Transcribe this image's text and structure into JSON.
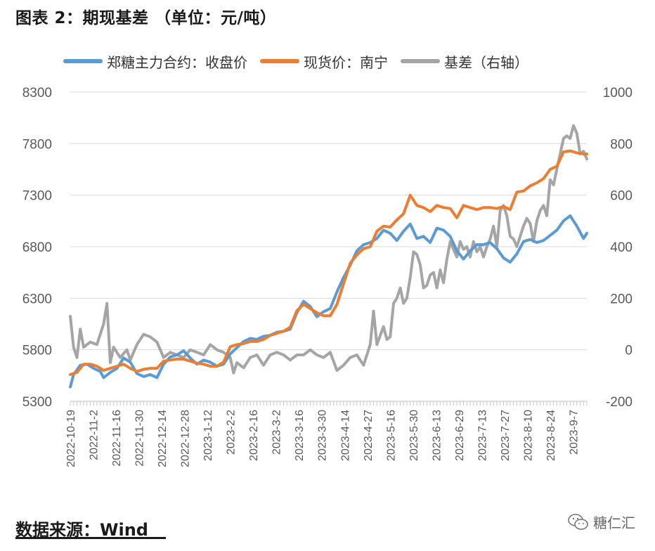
{
  "title": "图表 2：期现基差 （单位：元/吨）",
  "source": "数据来源：Wind",
  "watermark": "糖仁汇",
  "colors": {
    "futures": "#5b9bd5",
    "spot": "#ed7d31",
    "basis": "#a5a5a5",
    "grid": "#d9d9d9",
    "text": "#595959"
  },
  "chart_data": {
    "type": "line",
    "legend": [
      "郑糖主力合约：收盘价",
      "现货价：南宁",
      "基差（右轴）"
    ],
    "x_tick_labels": [
      "2022-10-19",
      "2022-11-2",
      "2022-11-16",
      "2022-11-30",
      "2022-12-14",
      "2022-12-28",
      "2023-1-12",
      "2023-2-2",
      "2023-2-16",
      "2023-3-2",
      "2023-3-16",
      "2023-3-30",
      "2023-4-14",
      "2023-4-27",
      "2023-5-16",
      "2023-5-30",
      "2023-6-13",
      "2023-6-29",
      "2023-7-13",
      "2023-7-27",
      "2023-8-10",
      "2023-8-24",
      "2023-9-7"
    ],
    "y_left": {
      "min": 5300,
      "max": 8300,
      "ticks": [
        5300,
        5800,
        6300,
        6800,
        7300,
        7800,
        8300
      ]
    },
    "y_right": {
      "min": -200,
      "max": 1000,
      "ticks": [
        -200,
        0,
        200,
        400,
        600,
        800,
        1000
      ]
    },
    "series": [
      {
        "name": "郑糖主力合约：收盘价",
        "axis": "left",
        "points": [
          [
            0,
            5440
          ],
          [
            1,
            5560
          ],
          [
            3,
            5650
          ],
          [
            5,
            5660
          ],
          [
            7,
            5620
          ],
          [
            9,
            5590
          ],
          [
            10,
            5530
          ],
          [
            12,
            5580
          ],
          [
            14,
            5620
          ],
          [
            16,
            5720
          ],
          [
            18,
            5680
          ],
          [
            20,
            5570
          ],
          [
            22,
            5540
          ],
          [
            24,
            5560
          ],
          [
            26,
            5530
          ],
          [
            28,
            5660
          ],
          [
            30,
            5730
          ],
          [
            32,
            5750
          ],
          [
            34,
            5790
          ],
          [
            36,
            5720
          ],
          [
            38,
            5660
          ],
          [
            40,
            5700
          ],
          [
            42,
            5680
          ],
          [
            44,
            5640
          ],
          [
            46,
            5660
          ],
          [
            48,
            5760
          ],
          [
            50,
            5820
          ],
          [
            52,
            5880
          ],
          [
            54,
            5910
          ],
          [
            56,
            5900
          ],
          [
            58,
            5930
          ],
          [
            60,
            5940
          ],
          [
            62,
            5970
          ],
          [
            64,
            5980
          ],
          [
            66,
            6000
          ],
          [
            68,
            6160
          ],
          [
            70,
            6270
          ],
          [
            72,
            6220
          ],
          [
            74,
            6120
          ],
          [
            76,
            6170
          ],
          [
            78,
            6200
          ],
          [
            80,
            6360
          ],
          [
            82,
            6500
          ],
          [
            84,
            6620
          ],
          [
            86,
            6760
          ],
          [
            88,
            6820
          ],
          [
            90,
            6840
          ],
          [
            92,
            6880
          ],
          [
            94,
            6960
          ],
          [
            96,
            6930
          ],
          [
            98,
            6860
          ],
          [
            100,
            6950
          ],
          [
            102,
            7020
          ],
          [
            104,
            6880
          ],
          [
            106,
            6900
          ],
          [
            108,
            6840
          ],
          [
            110,
            6980
          ],
          [
            112,
            6960
          ],
          [
            114,
            6900
          ],
          [
            116,
            6760
          ],
          [
            118,
            6680
          ],
          [
            120,
            6760
          ],
          [
            122,
            6820
          ],
          [
            124,
            6820
          ],
          [
            126,
            6840
          ],
          [
            128,
            6780
          ],
          [
            130,
            6690
          ],
          [
            132,
            6650
          ],
          [
            134,
            6730
          ],
          [
            136,
            6850
          ],
          [
            138,
            6870
          ],
          [
            140,
            6840
          ],
          [
            142,
            6860
          ],
          [
            144,
            6910
          ],
          [
            146,
            6960
          ],
          [
            148,
            7050
          ],
          [
            150,
            7100
          ],
          [
            152,
            7000
          ],
          [
            154,
            6880
          ],
          [
            155,
            6930
          ]
        ]
      },
      {
        "name": "现货价：南宁",
        "axis": "left",
        "points": [
          [
            0,
            5560
          ],
          [
            2,
            5580
          ],
          [
            4,
            5660
          ],
          [
            6,
            5660
          ],
          [
            8,
            5640
          ],
          [
            10,
            5600
          ],
          [
            12,
            5620
          ],
          [
            14,
            5640
          ],
          [
            16,
            5660
          ],
          [
            18,
            5620
          ],
          [
            20,
            5590
          ],
          [
            22,
            5610
          ],
          [
            24,
            5620
          ],
          [
            26,
            5620
          ],
          [
            28,
            5690
          ],
          [
            30,
            5700
          ],
          [
            32,
            5710
          ],
          [
            34,
            5710
          ],
          [
            36,
            5690
          ],
          [
            38,
            5670
          ],
          [
            40,
            5660
          ],
          [
            42,
            5640
          ],
          [
            44,
            5640
          ],
          [
            46,
            5680
          ],
          [
            48,
            5830
          ],
          [
            50,
            5850
          ],
          [
            52,
            5860
          ],
          [
            54,
            5880
          ],
          [
            56,
            5880
          ],
          [
            58,
            5900
          ],
          [
            60,
            5940
          ],
          [
            62,
            5960
          ],
          [
            64,
            5980
          ],
          [
            66,
            6020
          ],
          [
            68,
            6180
          ],
          [
            70,
            6240
          ],
          [
            72,
            6200
          ],
          [
            74,
            6160
          ],
          [
            76,
            6130
          ],
          [
            78,
            6130
          ],
          [
            80,
            6240
          ],
          [
            82,
            6440
          ],
          [
            84,
            6640
          ],
          [
            86,
            6720
          ],
          [
            88,
            6780
          ],
          [
            90,
            6800
          ],
          [
            92,
            6950
          ],
          [
            94,
            7000
          ],
          [
            96,
            6990
          ],
          [
            98,
            7060
          ],
          [
            100,
            7120
          ],
          [
            102,
            7300
          ],
          [
            104,
            7200
          ],
          [
            106,
            7180
          ],
          [
            108,
            7140
          ],
          [
            110,
            7200
          ],
          [
            112,
            7180
          ],
          [
            114,
            7170
          ],
          [
            116,
            7080
          ],
          [
            118,
            7200
          ],
          [
            120,
            7180
          ],
          [
            122,
            7160
          ],
          [
            124,
            7180
          ],
          [
            126,
            7180
          ],
          [
            128,
            7170
          ],
          [
            130,
            7190
          ],
          [
            132,
            7160
          ],
          [
            134,
            7330
          ],
          [
            136,
            7340
          ],
          [
            138,
            7390
          ],
          [
            140,
            7420
          ],
          [
            142,
            7460
          ],
          [
            144,
            7550
          ],
          [
            146,
            7580
          ],
          [
            148,
            7720
          ],
          [
            150,
            7730
          ],
          [
            152,
            7710
          ],
          [
            154,
            7700
          ],
          [
            155,
            7700
          ]
        ]
      },
      {
        "name": "基差（右轴）",
        "axis": "right",
        "points": [
          [
            0,
            130
          ],
          [
            1,
            10
          ],
          [
            2,
            -30
          ],
          [
            3,
            80
          ],
          [
            4,
            10
          ],
          [
            6,
            30
          ],
          [
            8,
            20
          ],
          [
            10,
            100
          ],
          [
            11,
            180
          ],
          [
            12,
            -50
          ],
          [
            13,
            10
          ],
          [
            15,
            -30
          ],
          [
            17,
            0
          ],
          [
            18,
            -40
          ],
          [
            20,
            20
          ],
          [
            22,
            60
          ],
          [
            24,
            50
          ],
          [
            26,
            30
          ],
          [
            28,
            -30
          ],
          [
            30,
            -10
          ],
          [
            32,
            -20
          ],
          [
            34,
            -30
          ],
          [
            36,
            0
          ],
          [
            38,
            -10
          ],
          [
            40,
            -20
          ],
          [
            42,
            20
          ],
          [
            44,
            0
          ],
          [
            46,
            -10
          ],
          [
            48,
            -30
          ],
          [
            49,
            -90
          ],
          [
            50,
            -50
          ],
          [
            52,
            -70
          ],
          [
            54,
            -30
          ],
          [
            56,
            -20
          ],
          [
            58,
            -60
          ],
          [
            60,
            -20
          ],
          [
            62,
            -10
          ],
          [
            64,
            -20
          ],
          [
            66,
            -40
          ],
          [
            68,
            -20
          ],
          [
            70,
            -20
          ],
          [
            72,
            0
          ],
          [
            74,
            -20
          ],
          [
            76,
            -30
          ],
          [
            78,
            -10
          ],
          [
            80,
            -80
          ],
          [
            82,
            -60
          ],
          [
            84,
            -30
          ],
          [
            86,
            -20
          ],
          [
            88,
            -60
          ],
          [
            90,
            20
          ],
          [
            91,
            150
          ],
          [
            92,
            20
          ],
          [
            94,
            90
          ],
          [
            95,
            40
          ],
          [
            96,
            50
          ],
          [
            97,
            180
          ],
          [
            98,
            200
          ],
          [
            99,
            240
          ],
          [
            100,
            180
          ],
          [
            101,
            200
          ],
          [
            102,
            280
          ],
          [
            103,
            380
          ],
          [
            104,
            370
          ],
          [
            105,
            330
          ],
          [
            106,
            240
          ],
          [
            107,
            250
          ],
          [
            108,
            290
          ],
          [
            109,
            300
          ],
          [
            110,
            240
          ],
          [
            111,
            310
          ],
          [
            112,
            260
          ],
          [
            113,
            350
          ],
          [
            114,
            420
          ],
          [
            115,
            390
          ],
          [
            116,
            360
          ],
          [
            117,
            420
          ],
          [
            118,
            390
          ],
          [
            119,
            400
          ],
          [
            120,
            360
          ],
          [
            121,
            420
          ],
          [
            122,
            380
          ],
          [
            123,
            400
          ],
          [
            124,
            360
          ],
          [
            125,
            400
          ],
          [
            126,
            430
          ],
          [
            127,
            480
          ],
          [
            128,
            400
          ],
          [
            129,
            540
          ],
          [
            130,
            560
          ],
          [
            131,
            520
          ],
          [
            132,
            440
          ],
          [
            133,
            430
          ],
          [
            134,
            400
          ],
          [
            135,
            440
          ],
          [
            136,
            480
          ],
          [
            137,
            510
          ],
          [
            138,
            490
          ],
          [
            139,
            420
          ],
          [
            140,
            500
          ],
          [
            141,
            540
          ],
          [
            142,
            560
          ],
          [
            143,
            520
          ],
          [
            144,
            660
          ],
          [
            145,
            640
          ],
          [
            146,
            700
          ],
          [
            147,
            760
          ],
          [
            148,
            820
          ],
          [
            149,
            830
          ],
          [
            150,
            820
          ],
          [
            151,
            870
          ],
          [
            152,
            840
          ],
          [
            153,
            760
          ],
          [
            154,
            770
          ],
          [
            155,
            740
          ]
        ]
      }
    ]
  }
}
